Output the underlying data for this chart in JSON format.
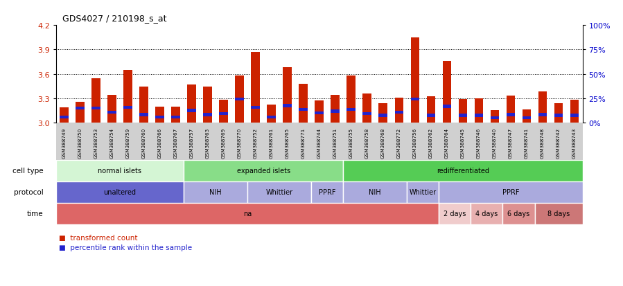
{
  "title": "GDS4027 / 210198_s_at",
  "samples": [
    "GSM388749",
    "GSM388750",
    "GSM388753",
    "GSM388754",
    "GSM388759",
    "GSM388760",
    "GSM388766",
    "GSM388767",
    "GSM388757",
    "GSM388763",
    "GSM388769",
    "GSM388770",
    "GSM388752",
    "GSM388761",
    "GSM388765",
    "GSM388771",
    "GSM388744",
    "GSM388751",
    "GSM388755",
    "GSM388758",
    "GSM388768",
    "GSM388772",
    "GSM388756",
    "GSM388762",
    "GSM388764",
    "GSM388745",
    "GSM388746",
    "GSM388740",
    "GSM388747",
    "GSM388741",
    "GSM388748",
    "GSM388742",
    "GSM388743"
  ],
  "red_values": [
    3.19,
    3.26,
    3.55,
    3.34,
    3.65,
    3.44,
    3.2,
    3.2,
    3.47,
    3.44,
    3.28,
    3.58,
    3.87,
    3.22,
    3.68,
    3.48,
    3.27,
    3.34,
    3.58,
    3.36,
    3.24,
    3.31,
    4.05,
    3.32,
    3.76,
    3.29,
    3.3,
    3.15,
    3.33,
    3.16,
    3.38,
    3.24,
    3.28
  ],
  "blue_values": [
    3.07,
    3.18,
    3.18,
    3.13,
    3.19,
    3.1,
    3.07,
    3.07,
    3.15,
    3.1,
    3.11,
    3.29,
    3.19,
    3.07,
    3.21,
    3.16,
    3.12,
    3.14,
    3.16,
    3.11,
    3.09,
    3.13,
    3.29,
    3.09,
    3.2,
    3.09,
    3.09,
    3.06,
    3.1,
    3.06,
    3.1,
    3.09,
    3.09
  ],
  "ymin": 3.0,
  "ymax": 4.2,
  "yticks": [
    3.0,
    3.3,
    3.6,
    3.9,
    4.2
  ],
  "grid_values": [
    3.3,
    3.6,
    3.9
  ],
  "right_yticks": [
    0,
    25,
    50,
    75,
    100
  ],
  "cell_type_groups": [
    {
      "label": "normal islets",
      "start": 0,
      "end": 7,
      "color": "#d4f5d4"
    },
    {
      "label": "expanded islets",
      "start": 8,
      "end": 17,
      "color": "#88dd88"
    },
    {
      "label": "redifferentiated",
      "start": 18,
      "end": 32,
      "color": "#55cc55"
    }
  ],
  "protocol_groups": [
    {
      "label": "unaltered",
      "start": 0,
      "end": 7,
      "color": "#6666cc"
    },
    {
      "label": "NIH",
      "start": 8,
      "end": 11,
      "color": "#aaaadd"
    },
    {
      "label": "Whittier",
      "start": 12,
      "end": 15,
      "color": "#aaaadd"
    },
    {
      "label": "PPRF",
      "start": 16,
      "end": 17,
      "color": "#aaaadd"
    },
    {
      "label": "NIH",
      "start": 18,
      "end": 21,
      "color": "#aaaadd"
    },
    {
      "label": "Whittier",
      "start": 22,
      "end": 23,
      "color": "#aaaadd"
    },
    {
      "label": "PPRF",
      "start": 24,
      "end": 32,
      "color": "#aaaadd"
    }
  ],
  "time_groups": [
    {
      "label": "na",
      "start": 0,
      "end": 23,
      "color": "#dd6666"
    },
    {
      "label": "2 days",
      "start": 24,
      "end": 25,
      "color": "#f0cccc"
    },
    {
      "label": "4 days",
      "start": 26,
      "end": 27,
      "color": "#e8b0b0"
    },
    {
      "label": "6 days",
      "start": 28,
      "end": 29,
      "color": "#dd9090"
    },
    {
      "label": "8 days",
      "start": 30,
      "end": 32,
      "color": "#cc7777"
    }
  ],
  "bar_color": "#cc2200",
  "blue_color": "#2222cc",
  "bg_color": "#ffffff",
  "lax_color": "#cc2200",
  "rax_color": "#0000cc",
  "xticklabel_bg": "#cccccc",
  "label_arrow_color": "#888888"
}
